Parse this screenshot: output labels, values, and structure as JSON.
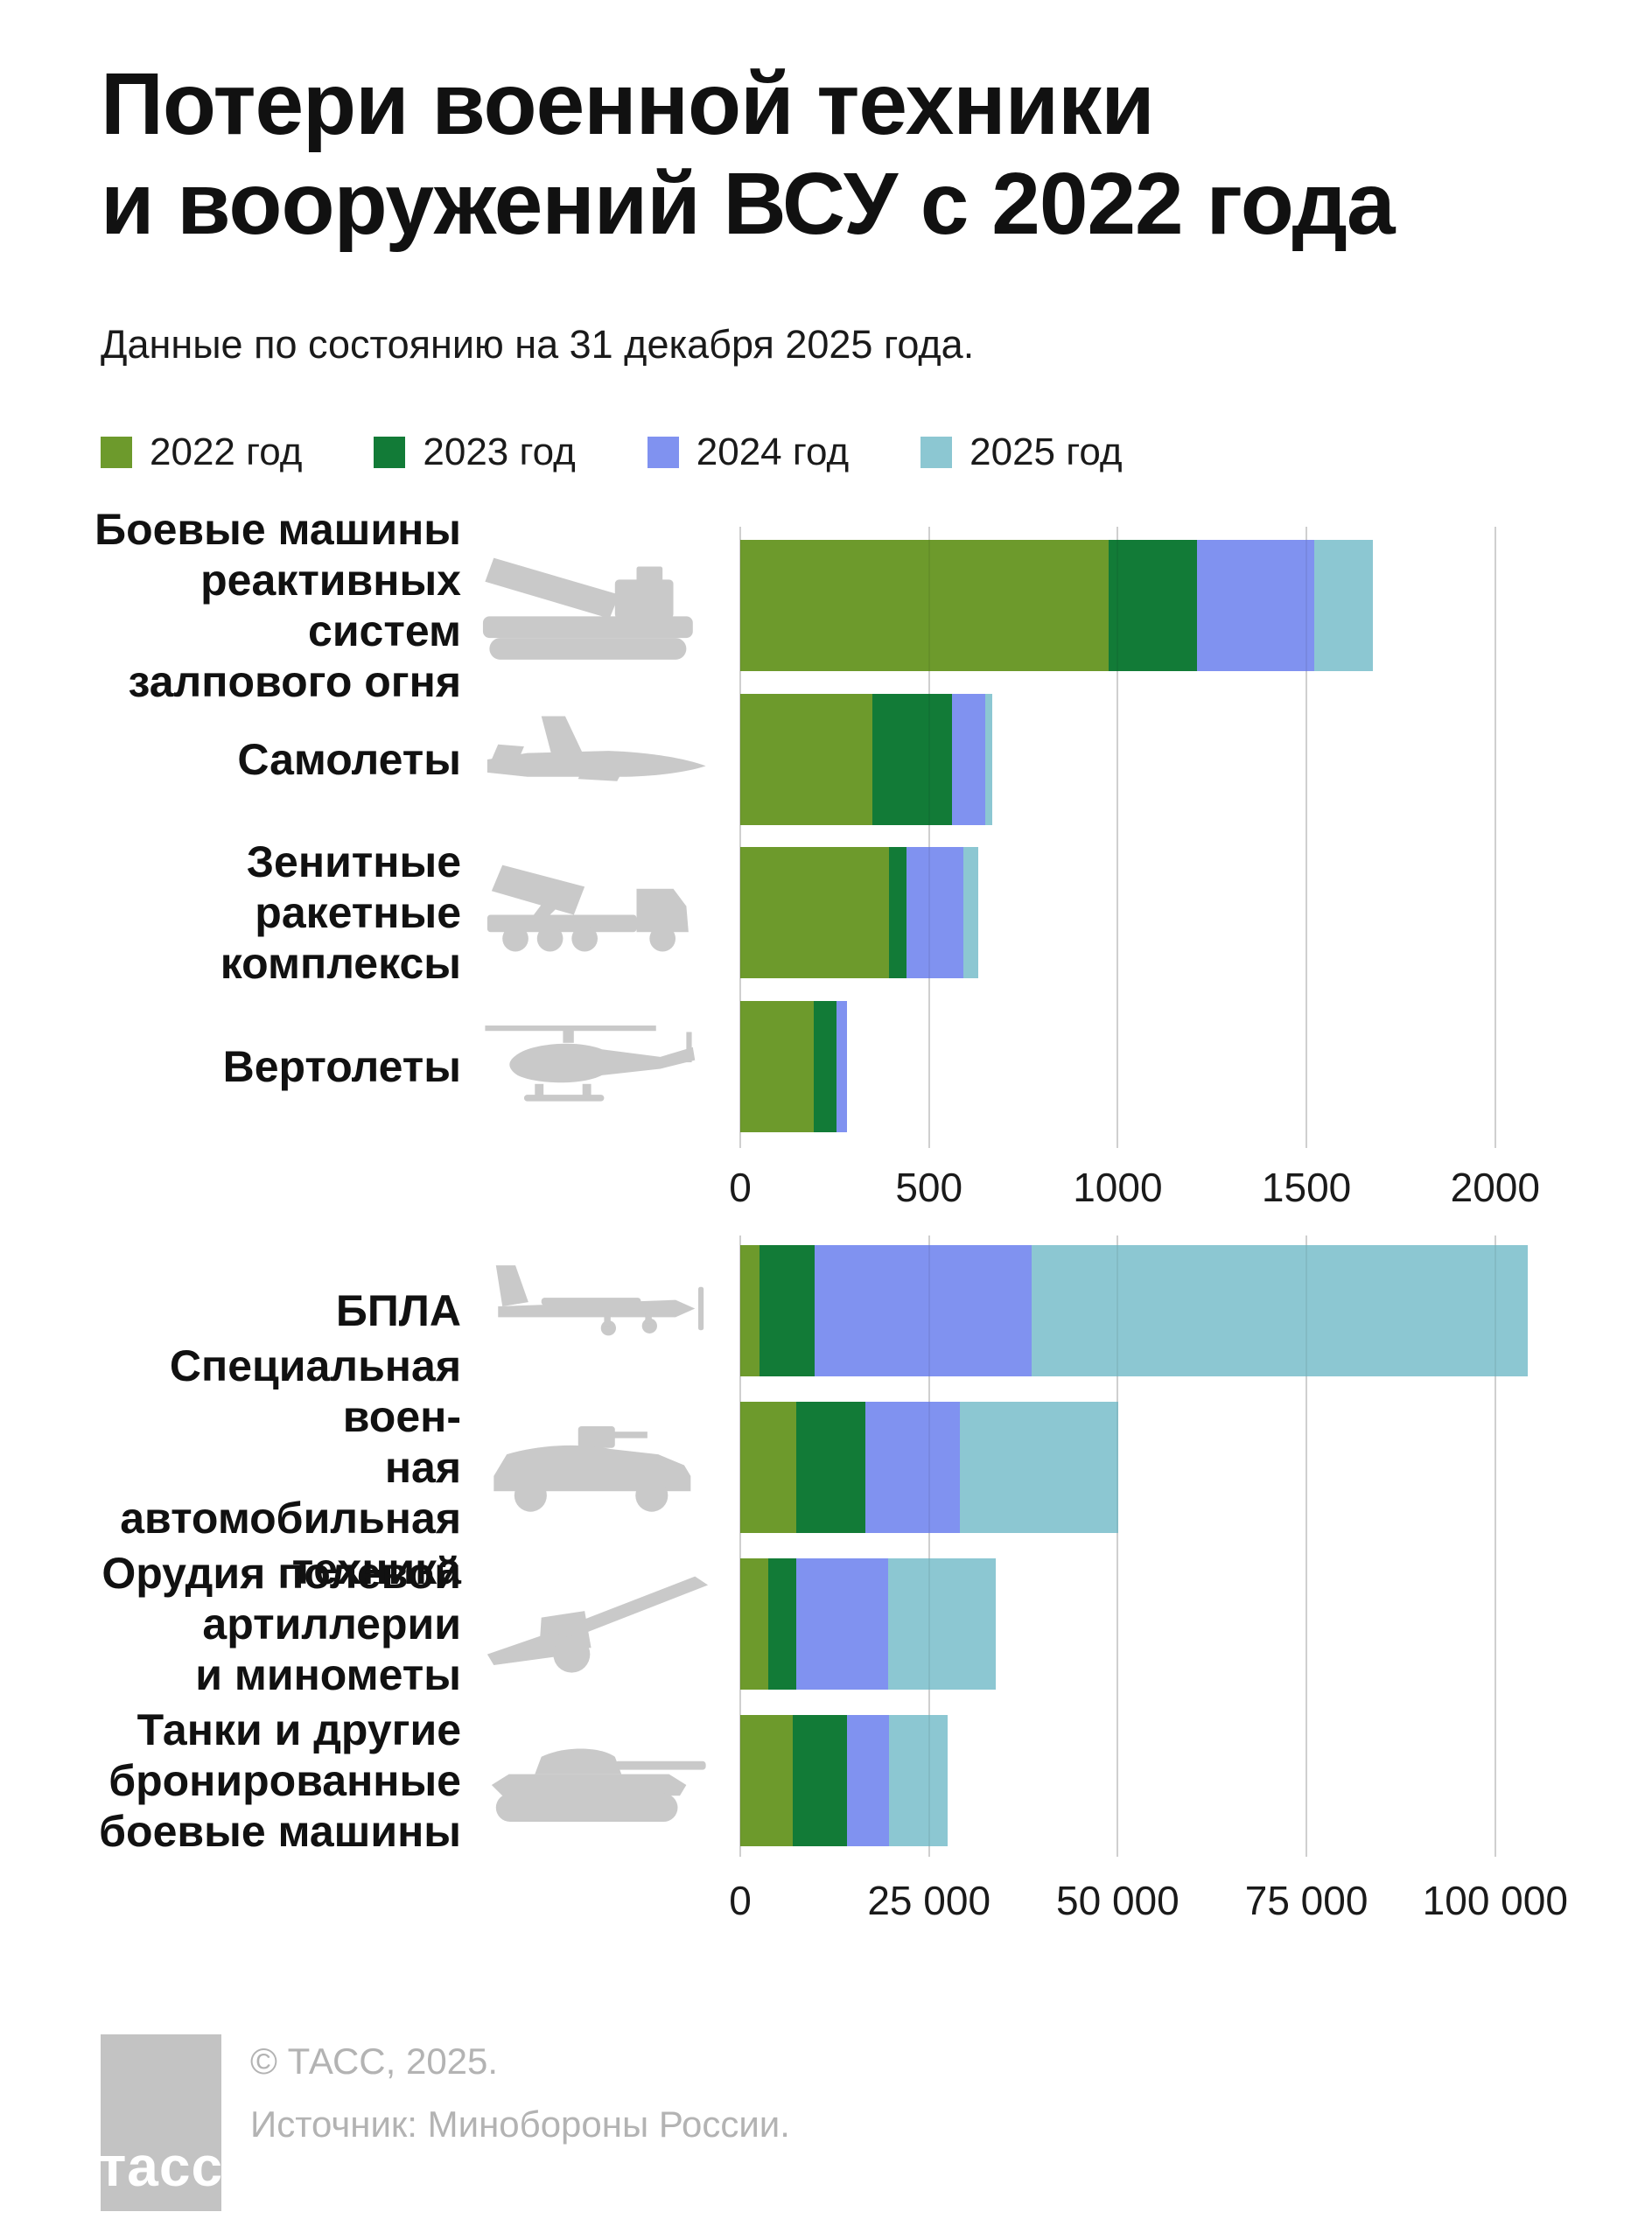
{
  "header": {
    "title_line1": "Потери военной техники",
    "title_line2": "и вооружений ВСУ с 2022 года",
    "subtitle": "Данные по состоянию на 31 декабря 2025 года."
  },
  "legend": [
    {
      "label": "2022 год",
      "color": "#6D9A2C"
    },
    {
      "label": "2023 год",
      "color": "#127B37"
    },
    {
      "label": "2024 год",
      "color": "#8092F0"
    },
    {
      "label": "2025 год",
      "color": "#8CC7D2"
    }
  ],
  "colors": {
    "year_2022": "#6D9A2C",
    "year_2023": "#127B37",
    "year_2024": "#8092F0",
    "year_2025": "#8CC7D2",
    "gridline": "#dedede",
    "icon_gray": "#c9c9c9",
    "footer_gray": "#b3b3b3"
  },
  "chart_data": [
    {
      "type": "bar",
      "orientation": "horizontal",
      "stacked": true,
      "categories": [
        "Боевые машины реактивных систем залпового огня",
        "Самолеты",
        "Зенитные ракетные комплексы",
        "Вертолеты"
      ],
      "category_lines": [
        [
          "Боевые машины",
          "реактивных систем",
          "залпового огня"
        ],
        [
          "Самолеты"
        ],
        [
          "Зенитные",
          "ракетные",
          "комплексы"
        ],
        [
          "Вертолеты"
        ]
      ],
      "icons": [
        "mlrs-icon",
        "jet-icon",
        "sam-icon",
        "helicopter-icon"
      ],
      "series": [
        {
          "name": "2022 год",
          "values": [
            975,
            350,
            395,
            195
          ]
        },
        {
          "name": "2023 год",
          "values": [
            235,
            210,
            45,
            60
          ]
        },
        {
          "name": "2024 год",
          "values": [
            310,
            90,
            150,
            28
          ]
        },
        {
          "name": "2025 год",
          "values": [
            155,
            18,
            40,
            0
          ]
        }
      ],
      "xticks": [
        0,
        500,
        1000,
        1500,
        2000
      ],
      "xtick_labels": [
        "0",
        "500",
        "1000",
        "1500",
        "2000"
      ],
      "xlim": [
        0,
        2185
      ],
      "grid": true,
      "legend_position": "top"
    },
    {
      "type": "bar",
      "orientation": "horizontal",
      "stacked": true,
      "categories": [
        "БПЛА",
        "Специальная военная автомобильная техника",
        "Орудия полевой артиллерии и минометы",
        "Танки и другие бронированные боевые машины"
      ],
      "category_lines": [
        [
          "БПЛА"
        ],
        [
          "Специальная воен-",
          "ная автомобильная",
          "техника"
        ],
        [
          "Орудия полевой",
          "артиллерии",
          "и минометы"
        ],
        [
          "Танки и другие",
          "бронированные",
          "боевые машины"
        ]
      ],
      "icons": [
        "drone-icon",
        "humvee-icon",
        "howitzer-icon",
        "tank-icon"
      ],
      "series": [
        {
          "name": "2022 год",
          "values": [
            2500,
            7400,
            3700,
            7000
          ]
        },
        {
          "name": "2023 год",
          "values": [
            7300,
            9200,
            3700,
            7100
          ]
        },
        {
          "name": "2024 год",
          "values": [
            28800,
            12500,
            12200,
            5600
          ]
        },
        {
          "name": "2025 год",
          "values": [
            65700,
            21000,
            14200,
            7800
          ]
        }
      ],
      "xticks": [
        0,
        25000,
        50000,
        75000,
        100000
      ],
      "xtick_labels": [
        "0",
        "25 000",
        "50 000",
        "75 000",
        "100 000"
      ],
      "xlim": [
        0,
        121000
      ],
      "grid": true,
      "legend_position": "top"
    }
  ],
  "footer": {
    "logo_text": "тасс",
    "copyright": "© ТАСС, 2025.",
    "source": "Источник: Минобороны России."
  }
}
